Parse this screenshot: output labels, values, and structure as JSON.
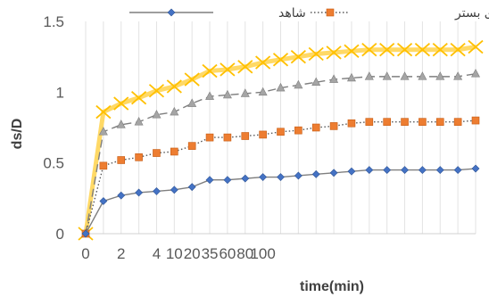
{
  "chart_data": {
    "type": "line",
    "title": "",
    "xlabel": "time(min)",
    "ylabel": "ds/D",
    "ylim": [
      0,
      1.5
    ],
    "yticks": [
      "0",
      "0.5",
      "1",
      "1.5"
    ],
    "x_tick_labels": [
      "0",
      "",
      "2",
      "",
      "4",
      "10",
      "20",
      "35",
      "60",
      "80",
      "100"
    ],
    "x": [
      "0",
      "1",
      "2",
      "3",
      "4",
      "5",
      "6",
      "7",
      "8",
      "9",
      "10",
      "15",
      "20",
      "25",
      "30",
      "35",
      "40",
      "50",
      "60",
      "70",
      "80",
      "90",
      "100"
    ],
    "grid": "vertical",
    "legend_position": "top",
    "series": [
      {
        "name": "شاهد",
        "color": "#7f7f7f",
        "marker": "diamond",
        "marker_color": "#4472c4",
        "line_style": "solid",
        "values": [
          0,
          0.23,
          0.27,
          0.29,
          0.3,
          0.31,
          0.33,
          0.38,
          0.38,
          0.39,
          0.4,
          0.4,
          0.41,
          0.42,
          0.43,
          0.44,
          0.45,
          0.45,
          0.45,
          0.45,
          0.45,
          0.45,
          0.46
        ]
      },
      {
        "name": "تراز بالای بستر",
        "color": "#595959",
        "marker": "square",
        "marker_color": "#ed7d31",
        "line_style": "dotted",
        "values": [
          0,
          0.48,
          0.52,
          0.54,
          0.57,
          0.58,
          0.62,
          0.68,
          0.68,
          0.69,
          0.7,
          0.72,
          0.73,
          0.75,
          0.76,
          0.78,
          0.79,
          0.79,
          0.79,
          0.79,
          0.79,
          0.79,
          0.8
        ]
      },
      {
        "name": "",
        "color": "#7f7f7f",
        "marker": "triangle",
        "marker_color": "#a5a5a5",
        "line_style": "dashed",
        "values": [
          0,
          0.72,
          0.77,
          0.79,
          0.84,
          0.86,
          0.92,
          0.97,
          0.98,
          0.99,
          1.0,
          1.03,
          1.05,
          1.07,
          1.09,
          1.1,
          1.11,
          1.11,
          1.11,
          1.11,
          1.11,
          1.11,
          1.13
        ]
      },
      {
        "name": "",
        "color": "#ffd966",
        "marker": "x",
        "marker_color": "#ffc000",
        "line_style": "solid",
        "values": [
          0,
          0.86,
          0.92,
          0.96,
          1.01,
          1.04,
          1.09,
          1.15,
          1.16,
          1.18,
          1.21,
          1.23,
          1.25,
          1.27,
          1.28,
          1.29,
          1.3,
          1.3,
          1.3,
          1.3,
          1.3,
          1.3,
          1.32
        ]
      }
    ]
  }
}
